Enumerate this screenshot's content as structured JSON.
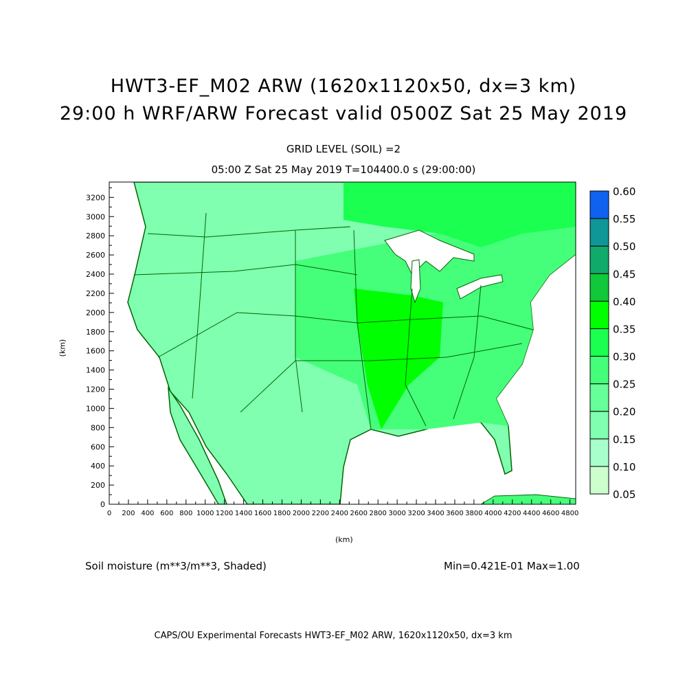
{
  "header": {
    "title_line1": "HWT3-EF_M02 ARW (1620x1120x50, dx=3 km)",
    "title_line2": "29:00 h WRF/ARW Forecast valid 0500Z Sat 25 May 2019",
    "subtitle_level": "GRID LEVEL (SOIL) =2",
    "subtitle_time": "05:00 Z Sat 25 May 2019    T=104400.0 s (29:00:00)"
  },
  "axes": {
    "x_label": "(km)",
    "y_label": "(km)",
    "x_ticks": [
      "0",
      "200",
      "400",
      "600",
      "800",
      "1000",
      "1200",
      "1400",
      "1600",
      "1800",
      "2000",
      "2200",
      "2400",
      "2600",
      "2800",
      "3000",
      "3200",
      "3400",
      "3600",
      "3800",
      "4000",
      "4200",
      "4400",
      "4600",
      "4800"
    ],
    "y_ticks": [
      "0",
      "200",
      "400",
      "600",
      "800",
      "1000",
      "1200",
      "1400",
      "1600",
      "1800",
      "2000",
      "2200",
      "2400",
      "2600",
      "2800",
      "3000",
      "3200"
    ],
    "x_range_km": [
      0,
      4860
    ],
    "y_range_km": [
      0,
      3360
    ]
  },
  "colorbar": {
    "labels": [
      "0.05",
      "0.10",
      "0.15",
      "0.20",
      "0.25",
      "0.30",
      "0.35",
      "0.40",
      "0.45",
      "0.50",
      "0.55",
      "0.60"
    ],
    "colors": [
      "#ccffcc",
      "#a8ffcc",
      "#80ffb0",
      "#66ff99",
      "#45ff7a",
      "#1aff50",
      "#00ff00",
      "#10c83a",
      "#10aa6a",
      "#0f9696",
      "#0f62f0"
    ]
  },
  "footer": {
    "field": "Soil moisture (m**3/m**3, Shaded)",
    "minmax": "Min=0.421E-01 Max=1.00",
    "credit": "CAPS/OU Experimental Forecasts  HWT3-EF_M02 ARW, 1620x1120x50, dx=3 km"
  }
}
